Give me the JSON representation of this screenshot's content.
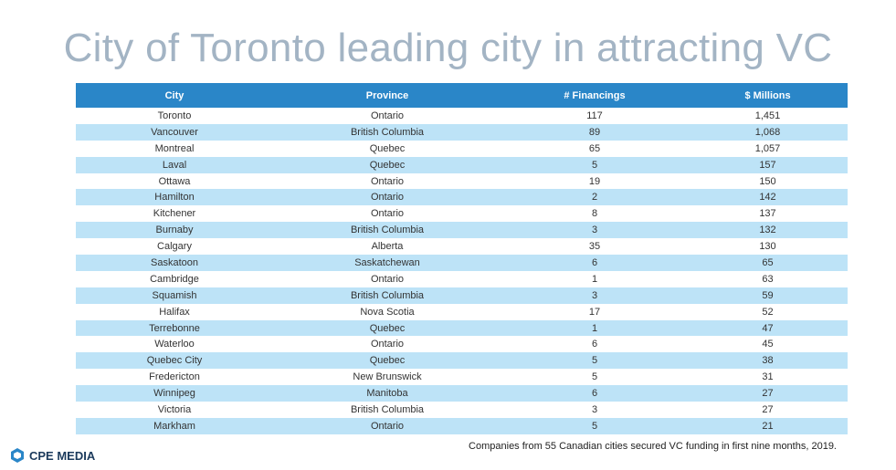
{
  "title": "City of Toronto leading city in attracting VC",
  "table": {
    "headers": [
      "City",
      "Province",
      "# Financings",
      "$ Millions"
    ],
    "rows": [
      [
        "Toronto",
        "Ontario",
        "117",
        "1,451"
      ],
      [
        "Vancouver",
        "British Columbia",
        "89",
        "1,068"
      ],
      [
        "Montreal",
        "Quebec",
        "65",
        "1,057"
      ],
      [
        "Laval",
        "Quebec",
        "5",
        "157"
      ],
      [
        "Ottawa",
        "Ontario",
        "19",
        "150"
      ],
      [
        "Hamilton",
        "Ontario",
        "2",
        "142"
      ],
      [
        "Kitchener",
        "Ontario",
        "8",
        "137"
      ],
      [
        "Burnaby",
        "British Columbia",
        "3",
        "132"
      ],
      [
        "Calgary",
        "Alberta",
        "35",
        "130"
      ],
      [
        "Saskatoon",
        "Saskatchewan",
        "6",
        "65"
      ],
      [
        "Cambridge",
        "Ontario",
        "1",
        "63"
      ],
      [
        "Squamish",
        "British Columbia",
        "3",
        "59"
      ],
      [
        "Halifax",
        "Nova Scotia",
        "17",
        "52"
      ],
      [
        "Terrebonne",
        "Quebec",
        "1",
        "47"
      ],
      [
        "Waterloo",
        "Ontario",
        "6",
        "45"
      ],
      [
        "Quebec City",
        "Quebec",
        "5",
        "38"
      ],
      [
        "Fredericton",
        "New Brunswick",
        "5",
        "31"
      ],
      [
        "Winnipeg",
        "Manitoba",
        "6",
        "27"
      ],
      [
        "Victoria",
        "British Columbia",
        "3",
        "27"
      ],
      [
        "Markham",
        "Ontario",
        "5",
        "21"
      ]
    ]
  },
  "footnote": "Companies from 55 Canadian cities secured VC funding in first nine months, 2019.",
  "logo": "CPE MEDIA"
}
